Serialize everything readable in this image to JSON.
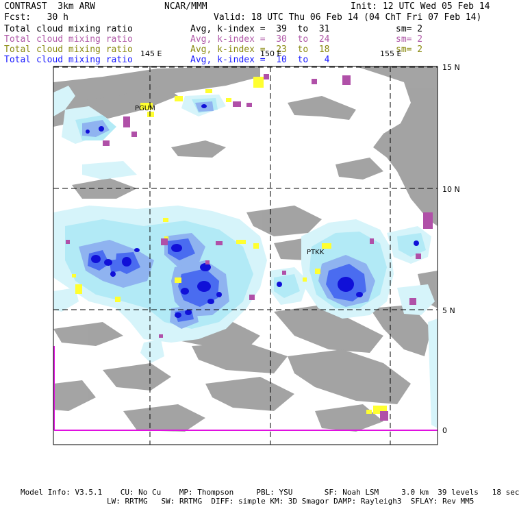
{
  "header": {
    "model": "CONTRAST  3km ARW",
    "center": "NCAR/MMM",
    "init": "Init: 12 UTC Wed 05 Feb 14",
    "fcst": "Fcst:   30 h",
    "valid": "Valid: 18 UTC Thu 06 Feb 14 (04 ChT Fri 07 Feb 14)"
  },
  "legend": [
    {
      "label": "Total cloud mixing ratio",
      "range": "Avg, k-index =  39  to  31",
      "sm": "sm= 2",
      "color": "#000000"
    },
    {
      "label": "Total cloud mixing ratio",
      "range": "Avg, k-index =  30  to  24",
      "sm": "sm= 2",
      "color": "#b05aa8"
    },
    {
      "label": "Total cloud mixing ratio",
      "range": "Avg, k-index =  23  to  18",
      "sm": "sm= 2",
      "color": "#8a8a10"
    },
    {
      "label": "Total cloud mixing ratio",
      "range": "Avg, k-index =  10  to   4",
      "sm": "",
      "color": "#1a1aff"
    }
  ],
  "map": {
    "lon_labels": [
      "145 E",
      "150 E",
      "155 E"
    ],
    "lat_labels": [
      "15 N",
      "10 N",
      "5 N",
      "0"
    ],
    "stations": [
      "PGUM",
      "PTKK"
    ],
    "colors": {
      "gray": "#9a9a9a",
      "light_cyan": "#d6f4fa",
      "cyan": "#b2eaf6",
      "light_blue": "#8fb3f0",
      "blue": "#4a6cf0",
      "dark_blue": "#1010d8",
      "yellow": "#ffff30",
      "magenta": "#b050a8",
      "axis_magenta": "#e010e0"
    }
  },
  "footer": {
    "line1": "Model Info: V3.5.1    CU: No Cu    MP: Thompson     PBL: YSU       SF: Noah LSM     3.0 km  39 levels   18 sec",
    "line2": "LW: RRTMG   SW: RRTMG  DIFF: simple KM: 3D Smagor DAMP: Rayleigh3  SFLAY: Rev MM5"
  }
}
